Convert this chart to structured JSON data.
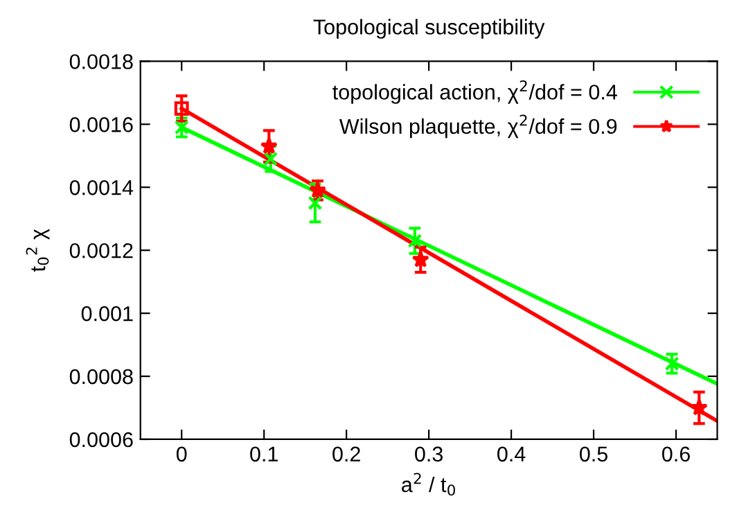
{
  "chart_data": {
    "type": "scatter",
    "title": "Topological susceptibility",
    "xlabel": "a$^{2}$ / t$_{0}$",
    "ylabel": "t$_{0}$$^{2}$ χ",
    "xlim": [
      -0.05,
      0.65
    ],
    "xticks": [
      0,
      0.1,
      0.2,
      0.3,
      0.4,
      0.5,
      0.6
    ],
    "ylim": [
      0.0006,
      0.0018
    ],
    "yticks": [
      0.0006,
      0.0008,
      0.001,
      0.0012,
      0.0014,
      0.0016,
      0.0018
    ],
    "grid": false,
    "legend": "top right",
    "series": [
      {
        "name": "topological action, χ$^{2}$/dof = 0.4",
        "color": "#00ff00",
        "marker": "cross",
        "x": [
          0,
          0.108,
          0.162,
          0.283,
          0.595
        ],
        "values": [
          0.00159,
          0.00149,
          0.00135,
          0.00123,
          0.00084
        ],
        "errors": [
          3e-05,
          4e-05,
          6e-05,
          4e-05,
          3e-05
        ]
      },
      {
        "name": "Wilson plaquette, χ$^{2}$/dof = 0.9",
        "color": "#ff0000",
        "marker": "star",
        "x": [
          0.106,
          0.165,
          0.29,
          0.628
        ],
        "values": [
          0.00153,
          0.00139,
          0.00117,
          0.0007
        ],
        "errors": [
          5e-05,
          3e-05,
          4e-05,
          5e-05
        ]
      },
      {
        "color": "#ff0000",
        "marker": "square",
        "x": [
          0
        ],
        "values": [
          0.00165
        ],
        "errors": [
          4e-05
        ]
      },
      {
        "type": "line",
        "color": "#00ff00",
        "marker": "none",
        "x": [
          0,
          0.65
        ],
        "values": [
          0.00159,
          0.000776
        ]
      },
      {
        "type": "line",
        "color": "#ff0000",
        "marker": "none",
        "x": [
          0,
          0.65
        ],
        "values": [
          0.00165,
          0.000658
        ]
      }
    ]
  }
}
